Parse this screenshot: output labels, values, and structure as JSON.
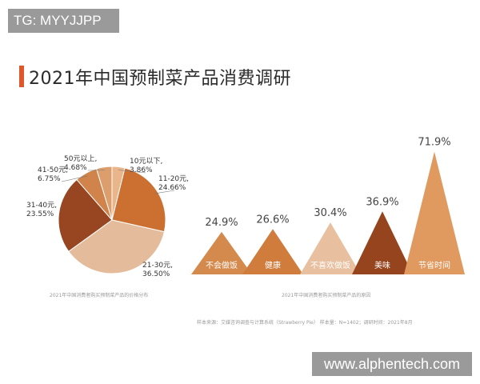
{
  "corner_tag": "TG: MYYJJPP",
  "header": {
    "title": "2021年中国预制菜产品消费调研"
  },
  "accent_color": "#e0562c",
  "watermark": "www.alphentech.com",
  "source_note": "样本来源：艾媒咨询调查与计算系统（Strawberry Pie） 样本量：N=1402；调研时间：2021年8月",
  "chart_data": [
    {
      "type": "pie",
      "caption": "2021年中国消费者购买预制菜产品的价格分布",
      "slices": [
        {
          "name": "10元以下",
          "label": "10元以下,",
          "pct_label": "3.86%",
          "value": 3.86,
          "color": "#e9b58b"
        },
        {
          "name": "11-20元",
          "label": "11-20元,",
          "pct_label": "24.66%",
          "value": 24.66,
          "color": "#cc7032"
        },
        {
          "name": "21-30元",
          "label": "21-30元,",
          "pct_label": "36.50%",
          "value": 36.5,
          "color": "#e4bb9b"
        },
        {
          "name": "31-40元",
          "label": "31-40元,",
          "pct_label": "23.55%",
          "value": 23.55,
          "color": "#974621"
        },
        {
          "name": "41-50元",
          "label": "41-50元,",
          "pct_label": "6.75%",
          "value": 6.75,
          "color": "#d0844c"
        },
        {
          "name": "50元以上",
          "label": "50元以上,",
          "pct_label": "4.68%",
          "value": 4.68,
          "color": "#dc9e6c"
        }
      ]
    },
    {
      "type": "bar",
      "caption": "2021年中国消费者购买预制菜产品的原因",
      "categories": [
        "不会做饭",
        "健康",
        "不喜欢做饭",
        "美味",
        "节省时间"
      ],
      "values": [
        24.9,
        26.6,
        30.4,
        36.9,
        71.9
      ],
      "value_labels": [
        "24.9%",
        "26.6%",
        "30.4%",
        "36.9%",
        "71.9%"
      ],
      "colors": [
        "#d58a4d",
        "#d07c3c",
        "#e8c0a0",
        "#96441e",
        "#e09a60"
      ],
      "ylim": [
        0,
        75
      ]
    }
  ]
}
